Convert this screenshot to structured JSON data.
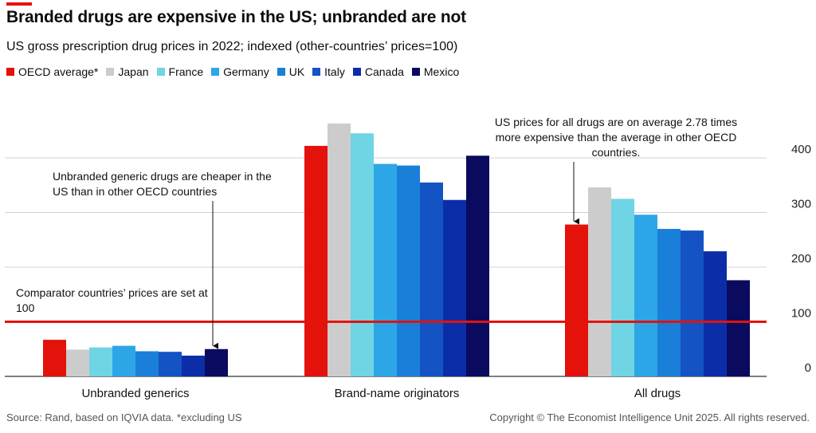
{
  "title": "Branded drugs are expensive in the US; unbranded are not",
  "subtitle": "US gross prescription drug prices in 2022; indexed (other-countries’ prices=100)",
  "source": "Source: Rand, based on IQVIA data. *excluding US",
  "copyright": "Copyright © The Economist Intelligence Unit 2025. All rights reserved.",
  "colors": {
    "OECD average*": "#e3120b",
    "Japan": "#cccccc",
    "France": "#6fd4e4",
    "Germany": "#2da6e8",
    "UK": "#1a7fd9",
    "Italy": "#1453c4",
    "Canada": "#0b2ea8",
    "Mexico": "#0a0a5e",
    "reference_line": "#e3120b"
  },
  "annotations": [
    {
      "id": "generics-note",
      "text": "Unbranded generic drugs are cheaper in the US than in other OECD countries"
    },
    {
      "id": "reference-note",
      "text": "Comparator countries’ prices are set at 100"
    },
    {
      "id": "alldrugs-note",
      "text": "US prices for all drugs are on average 2.78 times more expensive than the average in other OECD countries."
    }
  ],
  "chart_data": {
    "type": "bar",
    "categories": [
      "Unbranded generics",
      "Brand-name originators",
      "All drugs"
    ],
    "series": [
      {
        "name": "OECD average*",
        "values": [
          67,
          422,
          278
        ]
      },
      {
        "name": "Japan",
        "values": [
          49,
          463,
          346
        ]
      },
      {
        "name": "France",
        "values": [
          53,
          445,
          325
        ]
      },
      {
        "name": "Germany",
        "values": [
          56,
          389,
          296
        ]
      },
      {
        "name": "UK",
        "values": [
          46,
          386,
          270
        ]
      },
      {
        "name": "Italy",
        "values": [
          45,
          355,
          267
        ]
      },
      {
        "name": "Canada",
        "values": [
          38,
          323,
          229
        ]
      },
      {
        "name": "Mexico",
        "values": [
          50,
          404,
          176
        ]
      }
    ],
    "ylim": [
      0,
      470
    ],
    "yticks": [
      0,
      100,
      200,
      300,
      400
    ],
    "reference_value": 100,
    "xlabel": "",
    "ylabel": "",
    "legend_position": "top-left",
    "grid": true
  }
}
